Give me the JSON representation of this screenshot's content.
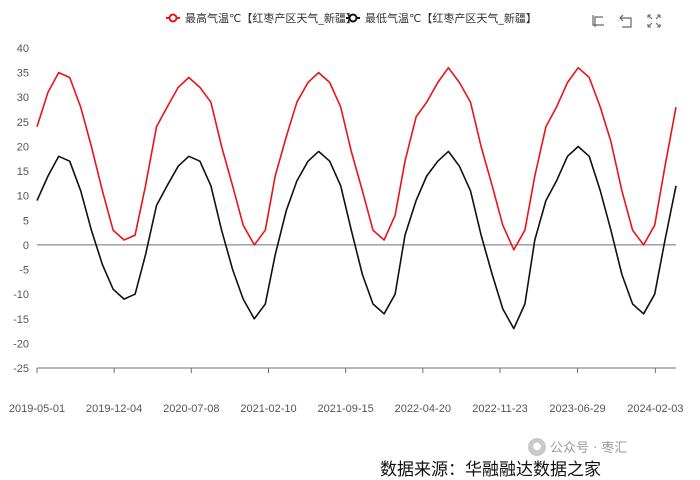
{
  "chart_data": {
    "type": "line",
    "title": "",
    "xlabel": "",
    "ylabel": "",
    "ylim": [
      -25,
      40
    ],
    "y_ticks": [
      -25,
      -20,
      -15,
      -10,
      -5,
      0,
      5,
      10,
      15,
      20,
      25,
      30,
      35,
      40
    ],
    "x_tick_labels": [
      "2019-05-01",
      "2019-12-04",
      "2020-07-08",
      "2021-02-10",
      "2021-09-15",
      "2022-04-20",
      "2022-11-23",
      "2023-06-29",
      "2024-02-03"
    ],
    "x_range": [
      "2019-05-01",
      "2024-04-01"
    ],
    "legend_position": "top-center",
    "grid": false,
    "series": [
      {
        "name": "最高气温℃【红枣产区天气_新疆】",
        "color": "#e8141a",
        "x": [
          "2019-05-01",
          "2019-06-01",
          "2019-07-01",
          "2019-08-01",
          "2019-09-01",
          "2019-10-01",
          "2019-11-01",
          "2019-12-01",
          "2020-01-01",
          "2020-02-01",
          "2020-03-01",
          "2020-04-01",
          "2020-05-01",
          "2020-06-01",
          "2020-07-01",
          "2020-08-01",
          "2020-09-01",
          "2020-10-01",
          "2020-11-01",
          "2020-12-01",
          "2021-01-01",
          "2021-02-01",
          "2021-03-01",
          "2021-04-01",
          "2021-05-01",
          "2021-06-01",
          "2021-07-01",
          "2021-08-01",
          "2021-09-01",
          "2021-10-01",
          "2021-11-01",
          "2021-12-01",
          "2022-01-01",
          "2022-02-01",
          "2022-03-01",
          "2022-04-01",
          "2022-05-01",
          "2022-06-01",
          "2022-07-01",
          "2022-08-01",
          "2022-09-01",
          "2022-10-01",
          "2022-11-01",
          "2022-12-01",
          "2023-01-01",
          "2023-02-01",
          "2023-03-01",
          "2023-04-01",
          "2023-05-01",
          "2023-06-01",
          "2023-07-01",
          "2023-08-01",
          "2023-09-01",
          "2023-10-01",
          "2023-11-01",
          "2023-12-01",
          "2024-01-01",
          "2024-02-01",
          "2024-03-01",
          "2024-04-01"
        ],
        "values": [
          24,
          31,
          35,
          34,
          28,
          20,
          11,
          3,
          1,
          2,
          12,
          24,
          28,
          32,
          34,
          32,
          29,
          20,
          12,
          4,
          0,
          3,
          14,
          22,
          29,
          33,
          35,
          33,
          28,
          19,
          11,
          3,
          1,
          6,
          17,
          26,
          29,
          33,
          36,
          33,
          29,
          20,
          12,
          4,
          -1,
          3,
          14,
          24,
          28,
          33,
          36,
          34,
          28,
          21,
          11,
          3,
          0,
          4,
          16,
          28
        ]
      },
      {
        "name": "最低气温℃【红枣产区天气_新疆】",
        "color": "#111111",
        "x": [
          "2019-05-01",
          "2019-06-01",
          "2019-07-01",
          "2019-08-01",
          "2019-09-01",
          "2019-10-01",
          "2019-11-01",
          "2019-12-01",
          "2020-01-01",
          "2020-02-01",
          "2020-03-01",
          "2020-04-01",
          "2020-05-01",
          "2020-06-01",
          "2020-07-01",
          "2020-08-01",
          "2020-09-01",
          "2020-10-01",
          "2020-11-01",
          "2020-12-01",
          "2021-01-01",
          "2021-02-01",
          "2021-03-01",
          "2021-04-01",
          "2021-05-01",
          "2021-06-01",
          "2021-07-01",
          "2021-08-01",
          "2021-09-01",
          "2021-10-01",
          "2021-11-01",
          "2021-12-01",
          "2022-01-01",
          "2022-02-01",
          "2022-03-01",
          "2022-04-01",
          "2022-05-01",
          "2022-06-01",
          "2022-07-01",
          "2022-08-01",
          "2022-09-01",
          "2022-10-01",
          "2022-11-01",
          "2022-12-01",
          "2023-01-01",
          "2023-02-01",
          "2023-03-01",
          "2023-04-01",
          "2023-05-01",
          "2023-06-01",
          "2023-07-01",
          "2023-08-01",
          "2023-09-01",
          "2023-10-01",
          "2023-11-01",
          "2023-12-01",
          "2024-01-01",
          "2024-02-01",
          "2024-03-01",
          "2024-04-01"
        ],
        "values": [
          9,
          14,
          18,
          17,
          11,
          3,
          -4,
          -9,
          -11,
          -10,
          -2,
          8,
          12,
          16,
          18,
          17,
          12,
          3,
          -5,
          -11,
          -15,
          -12,
          -2,
          7,
          13,
          17,
          19,
          17,
          12,
          3,
          -6,
          -12,
          -14,
          -10,
          2,
          9,
          14,
          17,
          19,
          16,
          11,
          2,
          -6,
          -13,
          -17,
          -12,
          1,
          9,
          13,
          18,
          20,
          18,
          11,
          3,
          -6,
          -12,
          -14,
          -10,
          1,
          12
        ]
      }
    ]
  },
  "toolbox": {
    "icons": [
      "zoom-icon",
      "zoom-reset-icon",
      "restore-icon"
    ]
  },
  "watermark": {
    "text": "公众号 · 枣汇"
  },
  "source": {
    "text": "数据来源：华融融达数据之家"
  }
}
